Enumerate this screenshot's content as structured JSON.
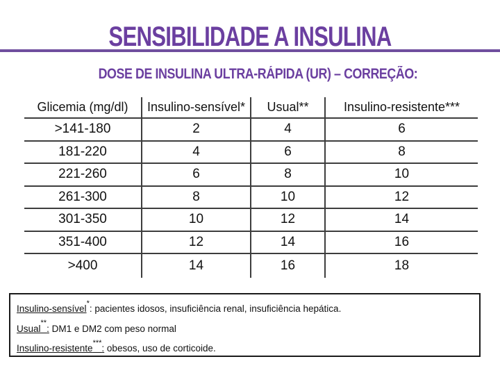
{
  "title": "SENSIBILIDADE A INSULINA",
  "subtitle": "DOSE DE INSULINA ULTRA-RÁPIDA (UR) – CORREÇÃO:",
  "colors": {
    "title_purple": "#6B3FA0",
    "rule_purple": "#6F4E9E",
    "table_line": "#3d3d3d",
    "text": "#111111"
  },
  "table": {
    "headers": [
      "Glicemia (mg/dl)",
      "Insulino-sensível*",
      "Usual**",
      "Insulino-resistente***"
    ],
    "rows": [
      [
        ">141-180",
        "2",
        "4",
        "6"
      ],
      [
        "181-220",
        "4",
        "6",
        "8"
      ],
      [
        "221-260",
        "6",
        "8",
        "10"
      ],
      [
        "261-300",
        "8",
        "10",
        "12"
      ],
      [
        "301-350",
        "10",
        "12",
        "14"
      ],
      [
        "351-400",
        "12",
        "14",
        "16"
      ],
      [
        ">400",
        "14",
        "16",
        "18"
      ]
    ]
  },
  "notes": [
    {
      "term": "Insulino-sensível",
      "sup": "*",
      "colon": ":",
      "rest": " pacientes idosos, insuficiência renal, insuficiência hepática."
    },
    {
      "term": "Usual",
      "sup": "**",
      "colon": ":",
      "rest": " DM1 e DM2  com peso normal"
    },
    {
      "term": "Insulino-resistente",
      "sup": "***",
      "colon": ":",
      "rest": " obesos, uso de corticoide."
    }
  ]
}
